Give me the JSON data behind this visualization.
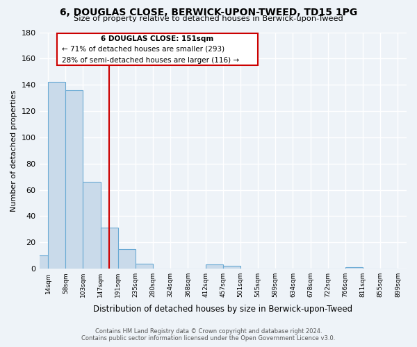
{
  "title": "6, DOUGLAS CLOSE, BERWICK-UPON-TWEED, TD15 1PG",
  "subtitle": "Size of property relative to detached houses in Berwick-upon-Tweed",
  "xlabel": "Distribution of detached houses by size in Berwick-upon-Tweed",
  "ylabel": "Number of detached properties",
  "bin_labels": [
    "14sqm",
    "58sqm",
    "103sqm",
    "147sqm",
    "191sqm",
    "235sqm",
    "280sqm",
    "324sqm",
    "368sqm",
    "412sqm",
    "457sqm",
    "501sqm",
    "545sqm",
    "589sqm",
    "634sqm",
    "678sqm",
    "722sqm",
    "766sqm",
    "811sqm",
    "855sqm",
    "899sqm"
  ],
  "counts": [
    10,
    142,
    136,
    66,
    31,
    15,
    4,
    0,
    0,
    0,
    3,
    2,
    0,
    0,
    0,
    0,
    0,
    0,
    1,
    0,
    0
  ],
  "bar_color": "#c9daea",
  "bar_edge_color": "#6aaad4",
  "background_color": "#eef3f8",
  "grid_color": "#ffffff",
  "property_bar_index": 3,
  "property_line_color": "#cc0000",
  "annotation_title": "6 DOUGLAS CLOSE: 151sqm",
  "annotation_line1": "← 71% of detached houses are smaller (293)",
  "annotation_line2": "28% of semi-detached houses are larger (116) →",
  "annotation_box_color": "#ffffff",
  "annotation_box_edge_color": "#cc0000",
  "footer_line1": "Contains HM Land Registry data © Crown copyright and database right 2024.",
  "footer_line2": "Contains public sector information licensed under the Open Government Licence v3.0.",
  "ylim": [
    0,
    180
  ],
  "yticks": [
    0,
    20,
    40,
    60,
    80,
    100,
    120,
    140,
    160,
    180
  ]
}
